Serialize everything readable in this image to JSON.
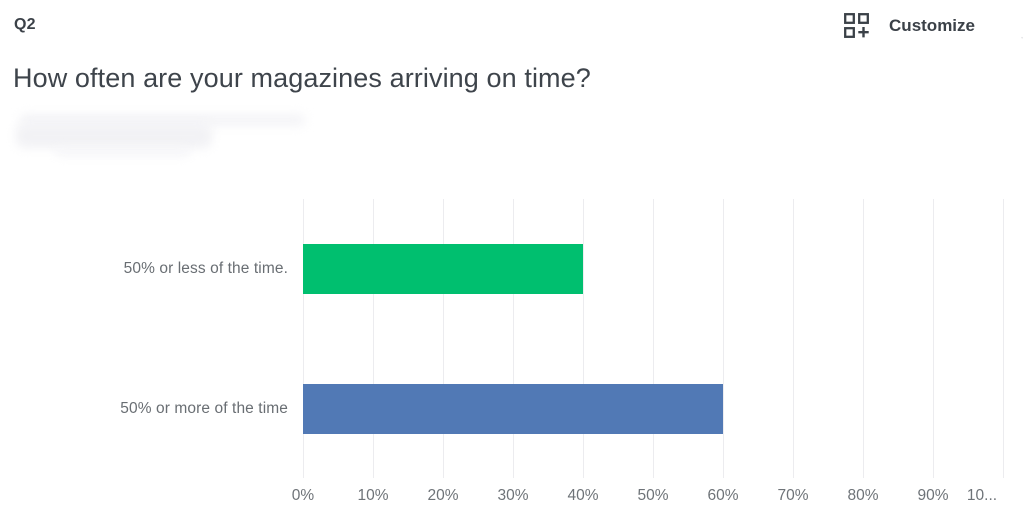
{
  "header": {
    "question_number": "Q2",
    "title": "How often are your magazines arriving on time?",
    "customize_label": "Customize",
    "customize_icon": "grid-plus-icon",
    "edge_artifact": "..."
  },
  "colors": {
    "text_dark": "#3b4148",
    "text_muted": "#6b7075",
    "gridline": "#ececef",
    "green_bar": "#00bf6f",
    "blue_bar": "#5179b5",
    "redaction_blur": "#f3f3f6"
  },
  "chart_data": {
    "type": "bar",
    "orientation": "horizontal",
    "title": "How often are your magazines arriving on time?",
    "categories": [
      "50% or less of the time.",
      "50% or more of the time"
    ],
    "values": [
      40,
      60
    ],
    "bar_colors": [
      "#00bf6f",
      "#5179b5"
    ],
    "xlabel": "",
    "ylabel": "",
    "xlim": [
      0,
      100
    ],
    "x_tick_values": [
      0,
      10,
      20,
      30,
      40,
      50,
      60,
      70,
      80,
      90,
      100
    ],
    "x_tick_labels": [
      "0%",
      "10%",
      "20%",
      "30%",
      "40%",
      "50%",
      "60%",
      "70%",
      "80%",
      "90%",
      "10..."
    ],
    "grid": true,
    "legend": false
  }
}
